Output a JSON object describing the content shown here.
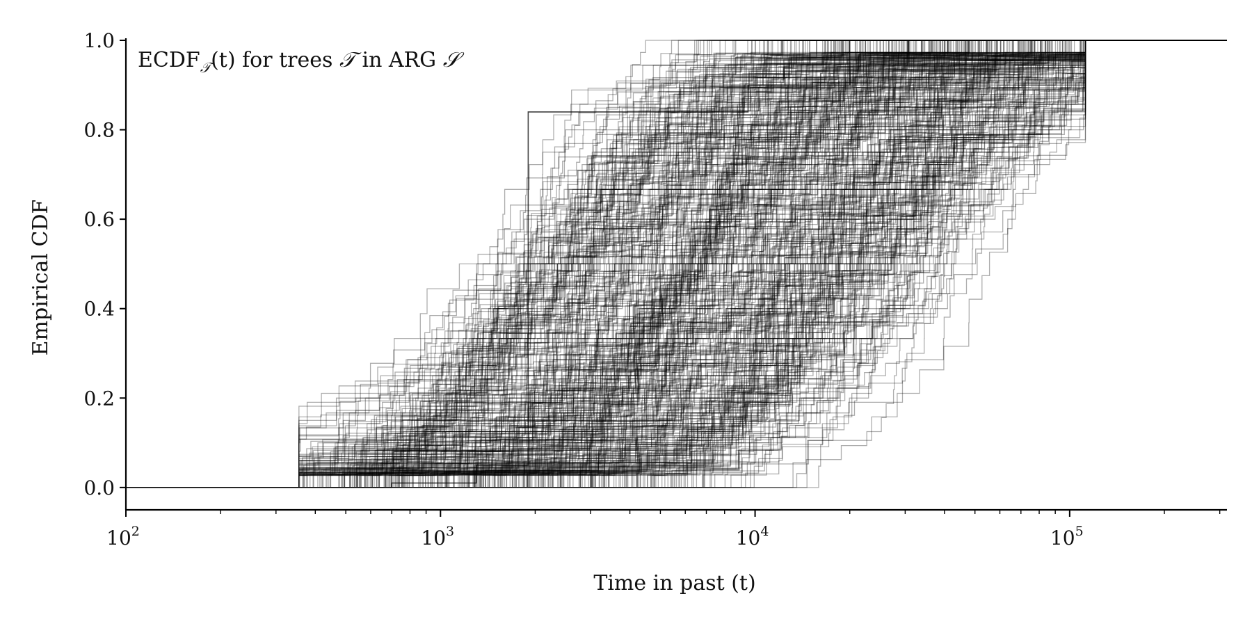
{
  "chart_data": {
    "type": "line",
    "subtype": "step-ecdf-ensemble",
    "annotation": {
      "prefix": "ECDF",
      "subscript": "𝒯",
      "suffix_arg": "(t)",
      "middle": " for trees ",
      "tree_symbol": "𝒯",
      "in_text": " in ARG ",
      "arg_symbol": "𝒮"
    },
    "xlabel": "Time in past (t)",
    "ylabel": "Empirical CDF",
    "xscale": "log",
    "xlim": [
      100,
      316228
    ],
    "ylim": [
      -0.05,
      1.0
    ],
    "x_major_ticks": [
      {
        "value": 100,
        "base": "10",
        "exp": "2"
      },
      {
        "value": 1000,
        "base": "10",
        "exp": "3"
      },
      {
        "value": 10000,
        "base": "10",
        "exp": "4"
      },
      {
        "value": 100000,
        "base": "10",
        "exp": "5"
      }
    ],
    "y_ticks": [
      {
        "value": 0.0,
        "label": "0.0"
      },
      {
        "value": 0.2,
        "label": "0.2"
      },
      {
        "value": 0.4,
        "label": "0.4"
      },
      {
        "value": 0.6,
        "label": "0.6"
      },
      {
        "value": 0.8,
        "label": "0.8"
      },
      {
        "value": 1.0,
        "label": "1.0"
      }
    ],
    "line_color": "#000000",
    "line_opacity": 0.32,
    "n_trees": 420,
    "ensemble_summary": {
      "earliest_rise_t": 400,
      "median_t_range": [
        1800,
        40000
      ],
      "latest_completion_t": 110000,
      "notable_step": {
        "t": 1900,
        "from": 0.1,
        "to": 0.84
      }
    },
    "grid": false,
    "legend": "none"
  }
}
